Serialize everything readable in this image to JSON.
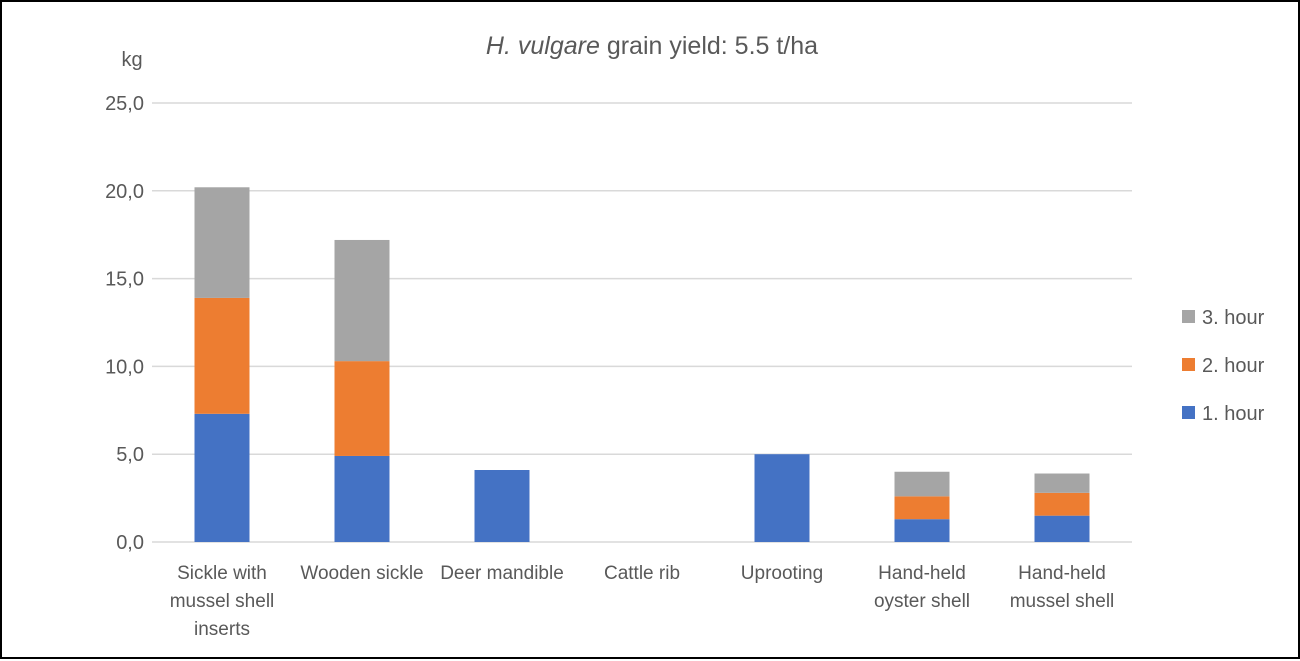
{
  "chart_data": {
    "type": "bar",
    "stacked": true,
    "title_italic": "H. vulgare",
    "title_rest": " grain yield: 5.5 t/ha",
    "ylabel": "kg",
    "xlabel": "",
    "ylim": [
      0,
      25
    ],
    "yticks": [
      "0,0",
      "5,0",
      "10,0",
      "15,0",
      "20,0",
      "25,0"
    ],
    "grid": true,
    "legend_position": "right",
    "categories": [
      [
        "Sickle with",
        "mussel shell",
        "inserts"
      ],
      [
        "Wooden sickle"
      ],
      [
        "Deer mandible"
      ],
      [
        "Cattle rib"
      ],
      [
        "Uprooting"
      ],
      [
        "Hand-held",
        "oyster shell"
      ],
      [
        "Hand-held",
        "mussel shell"
      ]
    ],
    "series": [
      {
        "name": "1. hour",
        "color": "#4472C4",
        "values": [
          7.3,
          4.9,
          4.1,
          0,
          5.0,
          1.3,
          1.5
        ]
      },
      {
        "name": "2. hour",
        "color": "#ED7D31",
        "values": [
          6.6,
          5.4,
          0,
          0,
          0,
          1.3,
          1.3
        ]
      },
      {
        "name": "3. hour",
        "color": "#A5A5A5",
        "values": [
          6.3,
          6.9,
          0,
          0,
          0,
          1.4,
          1.1
        ]
      }
    ]
  }
}
